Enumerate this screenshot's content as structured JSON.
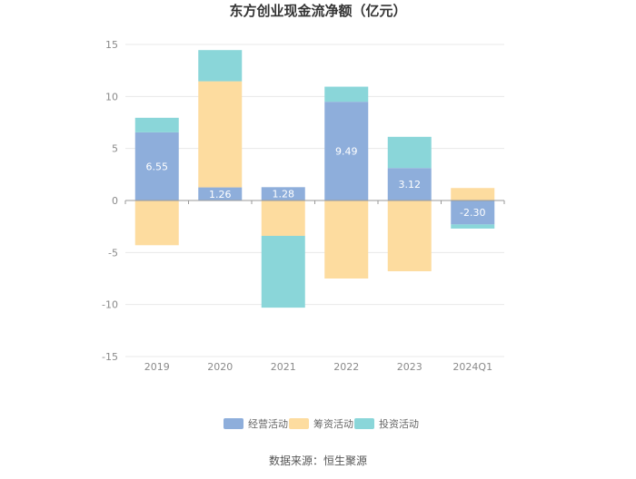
{
  "chart_data": {
    "type": "bar",
    "stacked": true,
    "title": "东方创业现金流净额（亿元）",
    "source": "数据来源：恒生聚源",
    "categories": [
      "2019",
      "2020",
      "2021",
      "2022",
      "2023",
      "2024Q1"
    ],
    "ylim": [
      -15,
      15
    ],
    "yticks": [
      15,
      10,
      5,
      0,
      -5,
      -10,
      -15
    ],
    "grid": true,
    "legend_position": "bottom",
    "series": [
      {
        "name": "经营活动",
        "color": "#8EAEDB",
        "values": [
          6.55,
          1.26,
          1.28,
          9.49,
          3.12,
          -2.3
        ]
      },
      {
        "name": "筹资活动",
        "color": "#FDDC9F",
        "values": [
          -4.3,
          10.2,
          -3.4,
          -7.5,
          -6.8,
          1.2
        ]
      },
      {
        "name": "投资活动",
        "color": "#8AD6D9",
        "values": [
          1.4,
          3.0,
          -6.9,
          1.45,
          3.0,
          -0.4
        ]
      }
    ],
    "data_labels": [
      "6.55",
      "1.26",
      "1.28",
      "9.49",
      "3.12",
      "-2.30"
    ]
  }
}
